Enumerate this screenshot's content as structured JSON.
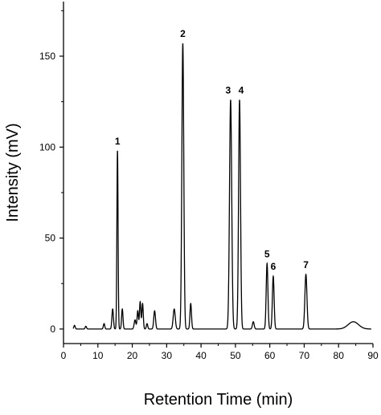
{
  "chart_data": {
    "type": "line",
    "title": "",
    "xlabel": "Retention Time (min)",
    "ylabel": "Intensity (mV)",
    "xlim": [
      0,
      90
    ],
    "ylim": [
      -8,
      180
    ],
    "x_ticks": [
      0,
      10,
      20,
      30,
      40,
      50,
      60,
      70,
      80,
      90
    ],
    "y_ticks": [
      0,
      50,
      100,
      150
    ],
    "grid": false,
    "legend": "none",
    "line_color": "#000000",
    "baseline": 0,
    "peaks": [
      {
        "t": 3.2,
        "h": 2,
        "w": 0.2
      },
      {
        "t": 6.5,
        "h": 1.5,
        "w": 0.2
      },
      {
        "t": 11.8,
        "h": 3,
        "w": 0.2
      },
      {
        "t": 14.3,
        "h": 11,
        "w": 0.22
      },
      {
        "t": 15.7,
        "h": 98,
        "w": 0.17,
        "label": "1"
      },
      {
        "t": 17.1,
        "h": 11,
        "w": 0.2
      },
      {
        "t": 20.8,
        "h": 5,
        "w": 0.25
      },
      {
        "t": 21.6,
        "h": 10,
        "w": 0.2
      },
      {
        "t": 22.3,
        "h": 15,
        "w": 0.2
      },
      {
        "t": 23.0,
        "h": 14,
        "w": 0.2
      },
      {
        "t": 24.3,
        "h": 3,
        "w": 0.2
      },
      {
        "t": 26.5,
        "h": 10,
        "w": 0.25
      },
      {
        "t": 32.2,
        "h": 11,
        "w": 0.3
      },
      {
        "t": 34.7,
        "h": 157,
        "w": 0.28,
        "label": "2"
      },
      {
        "t": 37.0,
        "h": 14,
        "w": 0.22
      },
      {
        "t": 48.6,
        "h": 126,
        "w": 0.32,
        "label": "3"
      },
      {
        "t": 51.2,
        "h": 126,
        "w": 0.28,
        "label": "4"
      },
      {
        "t": 55.2,
        "h": 4,
        "w": 0.25
      },
      {
        "t": 59.2,
        "h": 36,
        "w": 0.25,
        "label": "5"
      },
      {
        "t": 61.0,
        "h": 29,
        "w": 0.25,
        "label": "6"
      },
      {
        "t": 70.5,
        "h": 30,
        "w": 0.3,
        "label": "7"
      },
      {
        "t": 84.3,
        "h": 4,
        "w": 1.5
      }
    ]
  }
}
